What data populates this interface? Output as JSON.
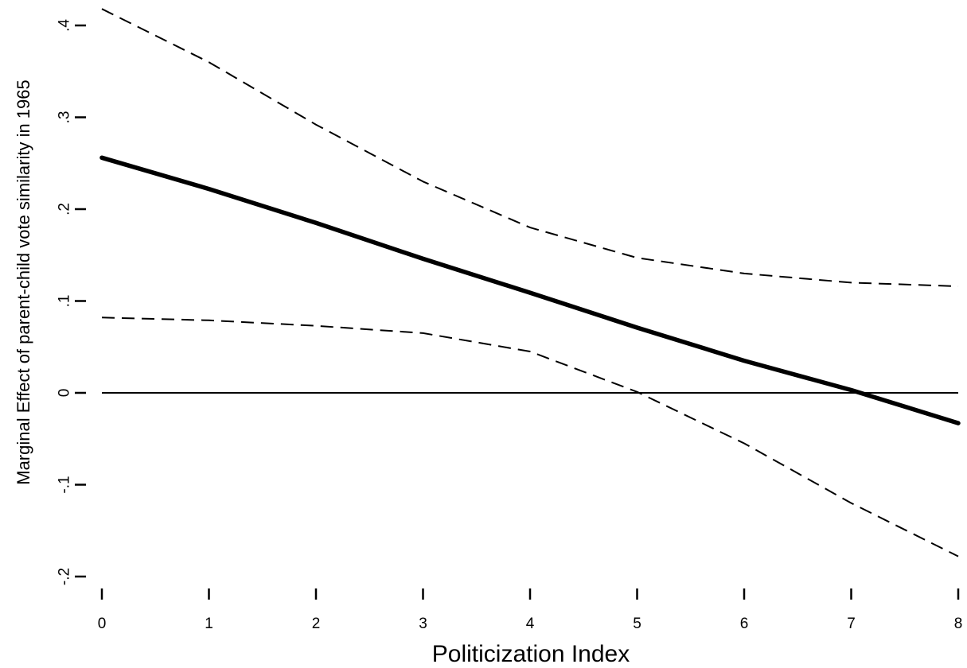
{
  "chart_data": {
    "type": "line",
    "xlabel": "Politicization Index",
    "ylabel": "Marginal Effect of parent-child vote similarity in 1965",
    "x": [
      0,
      1,
      2,
      3,
      4,
      5,
      6,
      7,
      8
    ],
    "series": [
      {
        "role": "estimate",
        "style": "solid-thick",
        "values": [
          0.256,
          0.222,
          0.185,
          0.146,
          0.109,
          0.071,
          0.035,
          0.003,
          -0.033
        ]
      },
      {
        "role": "upper-bound",
        "style": "dashed",
        "values": [
          0.418,
          0.36,
          0.292,
          0.23,
          0.18,
          0.147,
          0.13,
          0.12,
          0.116
        ]
      },
      {
        "role": "lower-bound",
        "style": "dashed",
        "values": [
          0.082,
          0.079,
          0.073,
          0.065,
          0.045,
          0.001,
          -0.055,
          -0.12,
          -0.178
        ]
      }
    ],
    "reference_line": {
      "y": 0
    },
    "xlim": [
      0,
      8
    ],
    "ylim": [
      -0.2,
      0.4
    ],
    "x_ticks": [
      {
        "value": 0,
        "label": "0"
      },
      {
        "value": 1,
        "label": "1"
      },
      {
        "value": 2,
        "label": "2"
      },
      {
        "value": 3,
        "label": "3"
      },
      {
        "value": 4,
        "label": "4"
      },
      {
        "value": 5,
        "label": "5"
      },
      {
        "value": 6,
        "label": "6"
      },
      {
        "value": 7,
        "label": "7"
      },
      {
        "value": 8,
        "label": "8"
      }
    ],
    "y_ticks": [
      {
        "value": -0.2,
        "label": "-.2"
      },
      {
        "value": -0.1,
        "label": "-.1"
      },
      {
        "value": 0,
        "label": "0"
      },
      {
        "value": 0.1,
        "label": ".1"
      },
      {
        "value": 0.2,
        "label": ".2"
      },
      {
        "value": 0.3,
        "label": ".3"
      },
      {
        "value": 0.4,
        "label": ".4"
      }
    ],
    "grid": false,
    "legend": "none",
    "colors": {
      "lines": "#000000",
      "background": "#ffffff"
    }
  }
}
